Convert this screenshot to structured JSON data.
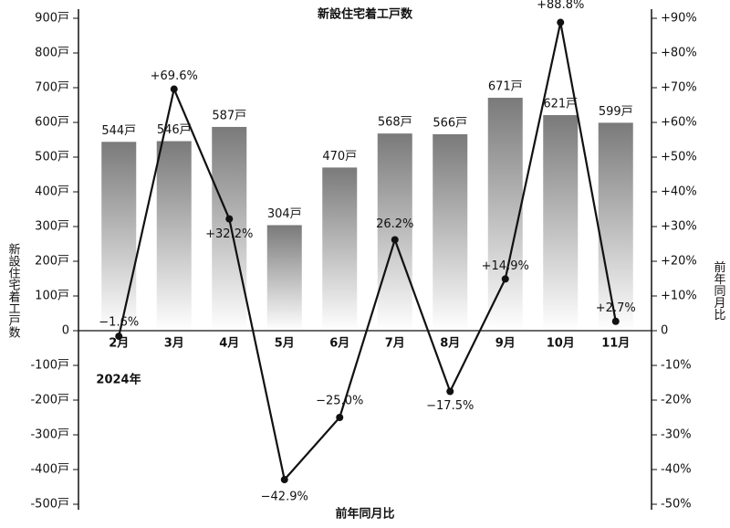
{
  "chart_data": {
    "type": "bar",
    "title": "新設住宅着工戸数",
    "y_label": "新設住宅着工戸数",
    "y2_label": "前年同月比",
    "x_label": "前年同月比",
    "annotation": "2024年",
    "categories": [
      "2月",
      "3月",
      "4月",
      "5月",
      "6月",
      "7月",
      "8月",
      "9月",
      "10月",
      "11月"
    ],
    "series": [
      {
        "name": "新設住宅着工戸数",
        "type": "bar",
        "color": "#7a7a7a",
        "values": [
          544,
          546,
          587,
          304,
          470,
          568,
          566,
          671,
          621,
          599
        ],
        "value_labels": [
          "544戸",
          "546戸",
          "587戸",
          "304戸",
          "470戸",
          "568戸",
          "566戸",
          "671戸",
          "621戸",
          "599戸"
        ]
      },
      {
        "name": "前年同月比",
        "type": "line",
        "axis": "y2",
        "color": "#111111",
        "values": [
          -1.6,
          69.6,
          32.2,
          -42.9,
          -25.0,
          26.2,
          -17.5,
          14.9,
          88.8,
          2.7
        ],
        "value_labels": [
          "−1.6%",
          "+69.6%",
          "+32.2%",
          "−42.9%",
          "−25.0%",
          "26.2%",
          "−17.5%",
          "+14.9%",
          "+88.8%",
          "+2.7%"
        ]
      }
    ],
    "ylim": [
      -500,
      900
    ],
    "yticks": [
      {
        "value": -500,
        "label": "-500戸"
      },
      {
        "value": -400,
        "label": "-400戸"
      },
      {
        "value": -300,
        "label": "-300戸"
      },
      {
        "value": -200,
        "label": "-200戸"
      },
      {
        "value": -100,
        "label": "-100戸"
      },
      0,
      {
        "value": 100,
        "label": "100戸"
      },
      {
        "value": 200,
        "label": "200戸"
      },
      {
        "value": 300,
        "label": "300戸"
      },
      {
        "value": 400,
        "label": "400戸"
      },
      {
        "value": 500,
        "label": "500戸"
      },
      {
        "value": 600,
        "label": "600戸"
      },
      {
        "value": 700,
        "label": "700戸"
      },
      {
        "value": 800,
        "label": "800戸"
      },
      {
        "value": 900,
        "label": "900戸"
      }
    ],
    "y2lim": [
      -50,
      90
    ],
    "y2ticks": [
      {
        "value": -50,
        "label": "-50%"
      },
      {
        "value": -40,
        "label": "-40%"
      },
      {
        "value": -30,
        "label": "-30%"
      },
      {
        "value": -20,
        "label": "-20%"
      },
      {
        "value": -10,
        "label": "-10%"
      },
      0,
      {
        "value": 10,
        "label": "+10%"
      },
      {
        "value": 20,
        "label": "+20%"
      },
      {
        "value": 30,
        "label": "+30%"
      },
      {
        "value": 40,
        "label": "+40%"
      },
      {
        "value": 50,
        "label": "+50%"
      },
      {
        "value": 60,
        "label": "+60%"
      },
      {
        "value": 70,
        "label": "+70%"
      },
      {
        "value": 80,
        "label": "+80%"
      },
      {
        "value": 90,
        "label": "+90%"
      }
    ]
  }
}
